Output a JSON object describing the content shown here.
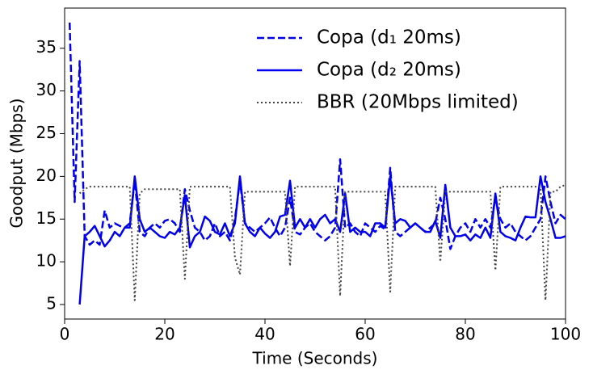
{
  "chart_data": {
    "type": "line",
    "xlabel": "Time (Seconds)",
    "ylabel": "Goodput (Mbps)",
    "x": [
      1,
      2,
      3,
      4,
      5,
      6,
      7,
      8,
      9,
      10,
      11,
      12,
      13,
      14,
      15,
      16,
      17,
      18,
      19,
      20,
      21,
      22,
      23,
      24,
      25,
      26,
      27,
      28,
      29,
      30,
      31,
      32,
      33,
      34,
      35,
      36,
      37,
      38,
      39,
      40,
      41,
      42,
      43,
      44,
      45,
      46,
      47,
      48,
      49,
      50,
      51,
      52,
      53,
      54,
      55,
      56,
      57,
      58,
      59,
      60,
      61,
      62,
      63,
      64,
      65,
      66,
      67,
      68,
      69,
      70,
      71,
      72,
      73,
      74,
      75,
      76,
      77,
      78,
      79,
      80,
      81,
      82,
      83,
      84,
      85,
      86,
      87,
      88,
      89,
      90,
      91,
      92,
      93,
      94,
      95,
      96,
      97,
      98,
      99,
      100
    ],
    "series": [
      {
        "name": "Copa (d₁ 20ms)",
        "color": "#0000ee",
        "style": "dashed",
        "values": [
          38,
          17,
          33.5,
          13,
          12,
          12.5,
          12,
          16,
          14,
          14.5,
          14.2,
          14,
          14.5,
          19.5,
          13.5,
          13,
          14,
          14.5,
          14,
          14.8,
          15,
          14.5,
          13.5,
          18.5,
          16,
          14,
          13.5,
          12.5,
          13,
          14.5,
          13,
          13.5,
          12.5,
          15,
          19.5,
          14.5,
          14,
          13.5,
          14,
          14.5,
          15.2,
          14,
          13,
          14,
          17.5,
          13.5,
          13.2,
          14,
          14.5,
          13.5,
          13,
          12.5,
          13,
          14,
          22,
          14,
          14.5,
          13.5,
          13,
          14.5,
          14,
          13.5,
          14.2,
          13.8,
          21,
          13.5,
          13,
          13.5,
          14,
          14.5,
          14,
          13.5,
          14,
          14.5,
          17.5,
          15,
          11.5,
          13,
          14,
          14.5,
          13.5,
          15,
          14,
          15,
          14,
          17.5,
          15,
          14,
          14.5,
          13.5,
          13,
          12.5,
          13,
          14,
          15,
          20,
          17,
          14.5,
          15.5,
          15
        ]
      },
      {
        "name": "Copa (d₂ 20ms)",
        "color": "#0000ee",
        "style": "solid",
        "values": [
          null,
          null,
          5,
          13,
          13.5,
          14.2,
          13,
          11.8,
          12.5,
          13.5,
          13,
          14,
          14,
          20,
          15,
          13.5,
          14,
          13.5,
          13,
          12.8,
          13.5,
          13.2,
          14,
          17.8,
          11.7,
          13,
          13.5,
          15.3,
          14.8,
          13.5,
          13.2,
          14.5,
          13,
          14.5,
          20,
          14.5,
          13.5,
          13,
          14,
          13.3,
          12.8,
          13.5,
          15.3,
          15.5,
          19.5,
          14,
          15,
          14,
          15,
          14,
          15,
          15.5,
          14.5,
          15,
          13.5,
          18,
          13.5,
          14,
          13.5,
          13.5,
          13,
          14.5,
          14.5,
          14,
          20,
          14.5,
          15,
          14.8,
          14,
          14.5,
          14,
          13.5,
          13.5,
          14.8,
          12.8,
          19,
          14,
          13,
          13,
          13.2,
          12.5,
          13.2,
          12.8,
          14,
          12.8,
          18,
          13.5,
          13,
          12.8,
          12.5,
          14,
          15.3,
          15.2,
          15.2,
          20,
          17,
          15,
          12.8,
          12.8,
          13
        ]
      },
      {
        "name": "BBR (20Mbps limited)",
        "color": "#444444",
        "style": "dotted",
        "values": [
          null,
          null,
          18,
          18.5,
          18.8,
          18.8,
          18.8,
          18.8,
          18.8,
          18.8,
          18.8,
          18.8,
          18.8,
          5.5,
          18,
          18.5,
          18.5,
          18.5,
          18.5,
          18.5,
          18.5,
          18.5,
          18.5,
          8,
          18.8,
          18.8,
          18.8,
          18.8,
          18.8,
          18.8,
          18.8,
          18.8,
          18.8,
          10.5,
          8.5,
          18.2,
          18.2,
          18.2,
          18.2,
          18.2,
          18.2,
          18.2,
          18.2,
          18.2,
          9.5,
          18.8,
          18.8,
          18.8,
          18.8,
          18.8,
          18.8,
          18.8,
          18.8,
          18.8,
          6,
          18.2,
          18.2,
          18.2,
          18.2,
          18.2,
          18.2,
          18.2,
          18.2,
          18.2,
          6.5,
          18.8,
          18.8,
          18.8,
          18.8,
          18.8,
          18.8,
          18.8,
          18.8,
          18.8,
          10,
          18.2,
          18.2,
          18.2,
          18.2,
          18.2,
          18.2,
          18.2,
          18.2,
          18.2,
          18.2,
          9,
          18.8,
          18.8,
          18.8,
          18.8,
          18.8,
          18.8,
          18.8,
          18.8,
          18.8,
          5.5,
          18.2,
          18.2,
          18.8,
          19
        ]
      }
    ],
    "xlim": [
      0,
      100
    ],
    "xticks": [
      0,
      20,
      40,
      60,
      80,
      100
    ],
    "ylim": [
      3.3,
      39.7
    ],
    "yticks": [
      5,
      10,
      15,
      20,
      25,
      30,
      35
    ],
    "grid": false,
    "legend": "upper right"
  }
}
